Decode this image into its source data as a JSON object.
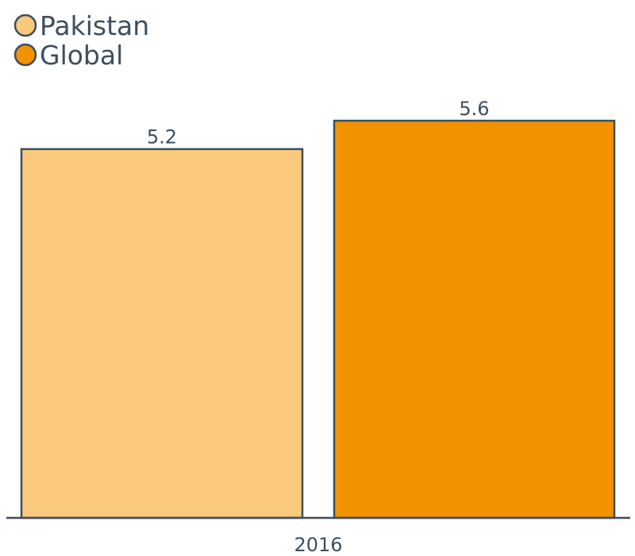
{
  "chart_data": {
    "type": "bar",
    "categories": [
      "2016"
    ],
    "series": [
      {
        "name": "Pakistan",
        "values": [
          5.2
        ],
        "color": "#fbc97e"
      },
      {
        "name": "Global",
        "values": [
          5.6
        ],
        "color": "#f39200"
      }
    ],
    "title": "",
    "xlabel": "",
    "ylabel": "",
    "ylim": [
      0,
      5.6
    ],
    "grid": false,
    "legend_position": "top-left",
    "data_labels": [
      "5.2",
      "5.6"
    ],
    "outline_color": "#3c4f5f",
    "text_color": "#3c4f5f"
  }
}
